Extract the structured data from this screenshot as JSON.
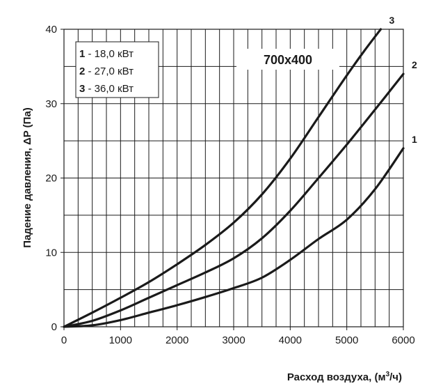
{
  "chart_data": {
    "type": "line",
    "title": "700x400",
    "xlabel_main": "Расход воздуха, (м",
    "xlabel_sup": "3",
    "xlabel_end": "/ч)",
    "ylabel": "Падение давления, ΔP (Па)",
    "xlim": [
      0,
      6000
    ],
    "ylim": [
      0,
      40
    ],
    "x_ticks": [
      "0",
      "1000",
      "2000",
      "3000",
      "4000",
      "5000",
      "6000"
    ],
    "y_ticks": [
      "0",
      "10",
      "20",
      "30",
      "40"
    ],
    "x_minor_step": 250,
    "y_minor_step": 5,
    "grid": true,
    "legend": [
      {
        "num": "1",
        "text": " - 18,0 кВт"
      },
      {
        "num": "2",
        "text": " - 27,0 кВт"
      },
      {
        "num": "3",
        "text": " - 36,0 кВт"
      }
    ],
    "legend_position": "top-left",
    "series": [
      {
        "label": "1",
        "x": [
          0,
          500,
          1000,
          1500,
          2000,
          2500,
          3000,
          3500,
          4000,
          4500,
          5000,
          5500,
          6000
        ],
        "y": [
          0,
          0.2,
          0.9,
          1.9,
          2.9,
          4.0,
          5.2,
          6.6,
          9.0,
          11.8,
          14.4,
          18.5,
          24.0
        ]
      },
      {
        "label": "2",
        "x": [
          0,
          500,
          1000,
          1500,
          2000,
          2500,
          3000,
          3500,
          4000,
          4500,
          5000,
          5500,
          6000
        ],
        "y": [
          0,
          0.8,
          2.2,
          3.9,
          5.6,
          7.3,
          9.2,
          11.9,
          15.6,
          20.0,
          24.5,
          29.2,
          34.0
        ]
      },
      {
        "label": "3",
        "x": [
          0,
          500,
          1000,
          1500,
          2000,
          2500,
          3000,
          3500,
          4000,
          4500,
          5000,
          5300,
          5600
        ],
        "y": [
          0,
          1.9,
          3.9,
          6.0,
          8.4,
          11.0,
          14.0,
          17.8,
          22.6,
          28.2,
          33.8,
          37.0,
          40.0
        ]
      }
    ]
  }
}
